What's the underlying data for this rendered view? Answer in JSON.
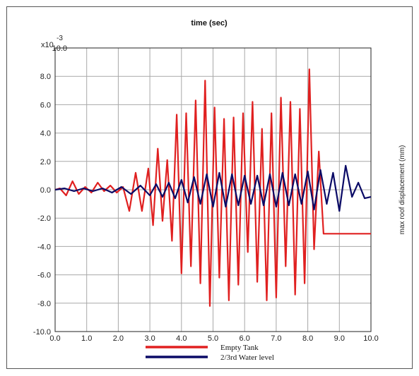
{
  "chart_data": {
    "type": "line",
    "title": "time (sec)",
    "xlabel": "",
    "ylabel": "max roof displacement (mm)",
    "y_multiplier": "x10",
    "y_exponent": "-3",
    "xlim": [
      0,
      10
    ],
    "ylim": [
      -10,
      10
    ],
    "x_ticks": [
      "0.0",
      "1.0",
      "2.0",
      "3.0",
      "4.0",
      "5.0",
      "6.0",
      "7.0",
      "8.0",
      "9.0",
      "10.0"
    ],
    "y_ticks": [
      "10.0",
      "8.0",
      "6.0",
      "4.0",
      "2.0",
      "0.0",
      "-2.0",
      "-4.0",
      "-6.0",
      "-8.0",
      "-10.0"
    ],
    "grid": true,
    "legend_position": "bottom-center",
    "series": [
      {
        "name": "Empty Tank",
        "color": "#e02020",
        "x": [
          0,
          0.15,
          0.35,
          0.55,
          0.75,
          0.95,
          1.15,
          1.35,
          1.55,
          1.75,
          1.95,
          2.15,
          2.35,
          2.55,
          2.75,
          2.95,
          3.1,
          3.25,
          3.4,
          3.55,
          3.7,
          3.85,
          4.0,
          4.15,
          4.3,
          4.45,
          4.6,
          4.75,
          4.9,
          5.05,
          5.2,
          5.35,
          5.5,
          5.65,
          5.8,
          5.95,
          6.1,
          6.25,
          6.4,
          6.55,
          6.7,
          6.85,
          7.0,
          7.15,
          7.3,
          7.45,
          7.6,
          7.75,
          7.9,
          8.05,
          8.2,
          8.35,
          8.5,
          8.65,
          8.8,
          8.95,
          9.1,
          9.25,
          9.4,
          9.55,
          9.7,
          9.85,
          10.0
        ],
        "values": [
          0,
          0.1,
          -0.4,
          0.6,
          -0.3,
          0.2,
          -0.2,
          0.5,
          -0.1,
          0.3,
          -0.2,
          0.2,
          -1.5,
          1.2,
          -1.5,
          1.5,
          -2.5,
          2.9,
          -2.2,
          2.1,
          -3.6,
          5.3,
          -5.9,
          5.4,
          -5.4,
          6.3,
          -6.6,
          7.7,
          -8.2,
          5.8,
          -6.2,
          5.0,
          -7.8,
          5.1,
          -6.7,
          5.4,
          -4.4,
          6.2,
          -6.5,
          4.3,
          -7.8,
          5.4,
          -7.6,
          6.5,
          -5.4,
          6.2,
          -7.4,
          5.7,
          -6.6,
          8.5,
          -4.2,
          2.7,
          -3.1,
          -3.1,
          -3.1,
          -3.1,
          -3.1,
          -3.1,
          -3.1,
          -3.1,
          -3.1,
          -3.1,
          -3.1
        ]
      },
      {
        "name": "2/3rd Water level",
        "color": "#0a0a66",
        "x": [
          0,
          0.3,
          0.6,
          0.9,
          1.2,
          1.5,
          1.8,
          2.1,
          2.4,
          2.7,
          3.0,
          3.2,
          3.4,
          3.6,
          3.8,
          4.0,
          4.2,
          4.4,
          4.6,
          4.8,
          5.0,
          5.2,
          5.4,
          5.6,
          5.8,
          6.0,
          6.2,
          6.4,
          6.6,
          6.8,
          7.0,
          7.2,
          7.4,
          7.6,
          7.8,
          8.0,
          8.2,
          8.4,
          8.6,
          8.8,
          9.0,
          9.2,
          9.4,
          9.6,
          9.8,
          10.0
        ],
        "values": [
          0,
          0.1,
          -0.1,
          0.1,
          -0.1,
          0.1,
          -0.2,
          0.2,
          -0.3,
          0.3,
          -0.4,
          0.4,
          -0.5,
          0.5,
          -0.6,
          0.7,
          -0.9,
          0.9,
          -1.0,
          1.1,
          -1.2,
          1.2,
          -1.2,
          1.1,
          -1.1,
          1.0,
          -1.0,
          1.0,
          -1.1,
          1.1,
          -1.2,
          1.2,
          -1.1,
          1.1,
          -1.0,
          1.3,
          -1.4,
          1.4,
          -1.0,
          1.2,
          -1.5,
          1.7,
          -0.5,
          0.5,
          -0.6,
          -0.5
        ]
      }
    ]
  }
}
